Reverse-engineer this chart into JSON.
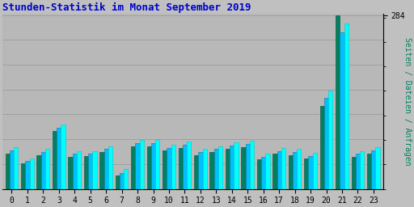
{
  "title": "Stunden-Statistik im Monat September 2019",
  "ylabel": "Seiten / Dateien / Anfragen",
  "hours": [
    0,
    1,
    2,
    3,
    4,
    5,
    6,
    7,
    8,
    9,
    10,
    11,
    12,
    13,
    14,
    15,
    16,
    17,
    18,
    19,
    20,
    21,
    22,
    23
  ],
  "anfragen_green": [
    58,
    42,
    55,
    95,
    52,
    53,
    60,
    22,
    70,
    70,
    63,
    67,
    55,
    60,
    66,
    68,
    48,
    57,
    55,
    50,
    135,
    284,
    52,
    58
  ],
  "dateien_blue": [
    63,
    46,
    60,
    100,
    57,
    57,
    65,
    26,
    75,
    75,
    67,
    72,
    60,
    65,
    71,
    73,
    52,
    62,
    60,
    54,
    148,
    255,
    57,
    63
  ],
  "seiten_cyan": [
    68,
    50,
    65,
    105,
    62,
    62,
    70,
    32,
    80,
    80,
    72,
    77,
    65,
    70,
    76,
    78,
    57,
    67,
    65,
    59,
    160,
    270,
    62,
    68
  ],
  "color_green": "#008060",
  "color_blue": "#00BFFF",
  "color_cyan": "#00FFFF",
  "bg_color": "#C0C0C0",
  "plot_bg": "#B8B8B8",
  "title_color": "#0000CC",
  "ylabel_color": "#008060",
  "ymax": 284,
  "grid_color": "#A0A0A0"
}
